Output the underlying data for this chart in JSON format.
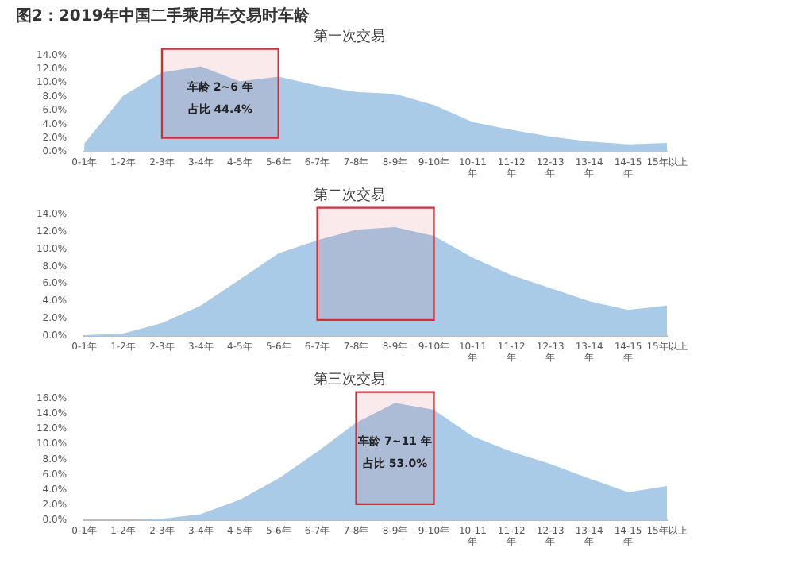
{
  "chart_data": [
    {
      "type": "area",
      "title": "图2：2019年中国二手乘用车交易时车龄",
      "subtitle": "第一次交易",
      "categories": [
        "0-1年",
        "1-2年",
        "2-3年",
        "3-4年",
        "4-5年",
        "5-6年",
        "6-7年",
        "7-8年",
        "8-9年",
        "9-10年",
        "10-11年",
        "11-12年",
        "12-13年",
        "13-14年",
        "14-15年",
        "15年以上"
      ],
      "values": [
        1.2,
        8.1,
        11.5,
        12.4,
        10.2,
        10.9,
        9.6,
        8.7,
        8.4,
        6.8,
        4.3,
        3.2,
        2.2,
        1.5,
        1.1,
        1.3
      ],
      "color": "#a9cbe8",
      "marker": "none",
      "grid": false,
      "legend": false,
      "ylim": [
        0,
        14
      ],
      "yticks": [
        {
          "value": 0,
          "label": "0.0%"
        },
        {
          "value": 2,
          "label": "2.0%"
        },
        {
          "value": 4,
          "label": "4.0%"
        },
        {
          "value": 6,
          "label": "6.0%"
        },
        {
          "value": 8,
          "label": "8.0%"
        },
        {
          "value": 10,
          "label": "10.0%"
        },
        {
          "value": 12,
          "label": "12.0%"
        },
        {
          "value": 14,
          "label": "14.0%"
        }
      ],
      "bands": [
        {
          "axis": "x",
          "from": "2-3年",
          "to": "5-6年",
          "color": "#d0303a"
        }
      ],
      "annotations": [
        "车龄 2~6 年",
        "占比 44.4%"
      ]
    },
    {
      "type": "area",
      "title": "第二次交易",
      "categories": [
        "0-1年",
        "1-2年",
        "2-3年",
        "3-4年",
        "4-5年",
        "5-6年",
        "6-7年",
        "7-8年",
        "8-9年",
        "9-10年",
        "10-11年",
        "11-12年",
        "12-13年",
        "13-14年",
        "14-15年",
        "15年以上"
      ],
      "values": [
        0.1,
        0.3,
        1.5,
        3.5,
        6.5,
        9.5,
        11,
        12.2,
        12.5,
        11.5,
        9,
        7,
        5.5,
        4,
        3,
        3.5
      ],
      "color": "#a9cbe8",
      "marker": "none",
      "grid": false,
      "legend": false,
      "ylim": [
        0,
        14
      ],
      "yticks": [
        {
          "value": 0,
          "label": "0.0%"
        },
        {
          "value": 2,
          "label": "2.0%"
        },
        {
          "value": 4,
          "label": "4.0%"
        },
        {
          "value": 6,
          "label": "6.0%"
        },
        {
          "value": 8,
          "label": "8.0%"
        },
        {
          "value": 10,
          "label": "10.0%"
        },
        {
          "value": 12,
          "label": "12.0%"
        },
        {
          "value": 14,
          "label": "14.0%"
        }
      ],
      "bands": [
        {
          "axis": "x",
          "from": "6-7年",
          "to": "9-10年",
          "color": "#d0303a"
        }
      ]
    },
    {
      "type": "area",
      "title": "第三次交易",
      "categories": [
        "0-1年",
        "1-2年",
        "2-3年",
        "3-4年",
        "4-5年",
        "5-6年",
        "6-7年",
        "7-8年",
        "8-9年",
        "9-10年",
        "10-11年",
        "11-12年",
        "12-13年",
        "13-14年",
        "14-15年",
        "15年以上"
      ],
      "values": [
        0,
        0,
        0.2,
        0.8,
        2.7,
        5.5,
        9,
        12.8,
        15.4,
        14.5,
        11,
        9,
        7.4,
        5.5,
        3.7,
        4.5
      ],
      "color": "#a9cbe8",
      "marker": "none",
      "grid": false,
      "legend": false,
      "ylim": [
        0,
        16
      ],
      "yticks": [
        {
          "value": 0,
          "label": "0.0%"
        },
        {
          "value": 2,
          "label": "2.0%"
        },
        {
          "value": 4,
          "label": "4.0%"
        },
        {
          "value": 6,
          "label": "6.0%"
        },
        {
          "value": 8,
          "label": "8.0%"
        },
        {
          "value": 10,
          "label": "10.0%"
        },
        {
          "value": 12,
          "label": "12.0%"
        },
        {
          "value": 14,
          "label": "14.0%"
        },
        {
          "value": 16,
          "label": "16.0%"
        }
      ],
      "bands": [
        {
          "axis": "x",
          "from": "7-8年",
          "to": "9-10年",
          "color": "#d0303a"
        }
      ],
      "annotations": [
        "车龄 7~11 年",
        "占比 53.0%"
      ]
    }
  ]
}
